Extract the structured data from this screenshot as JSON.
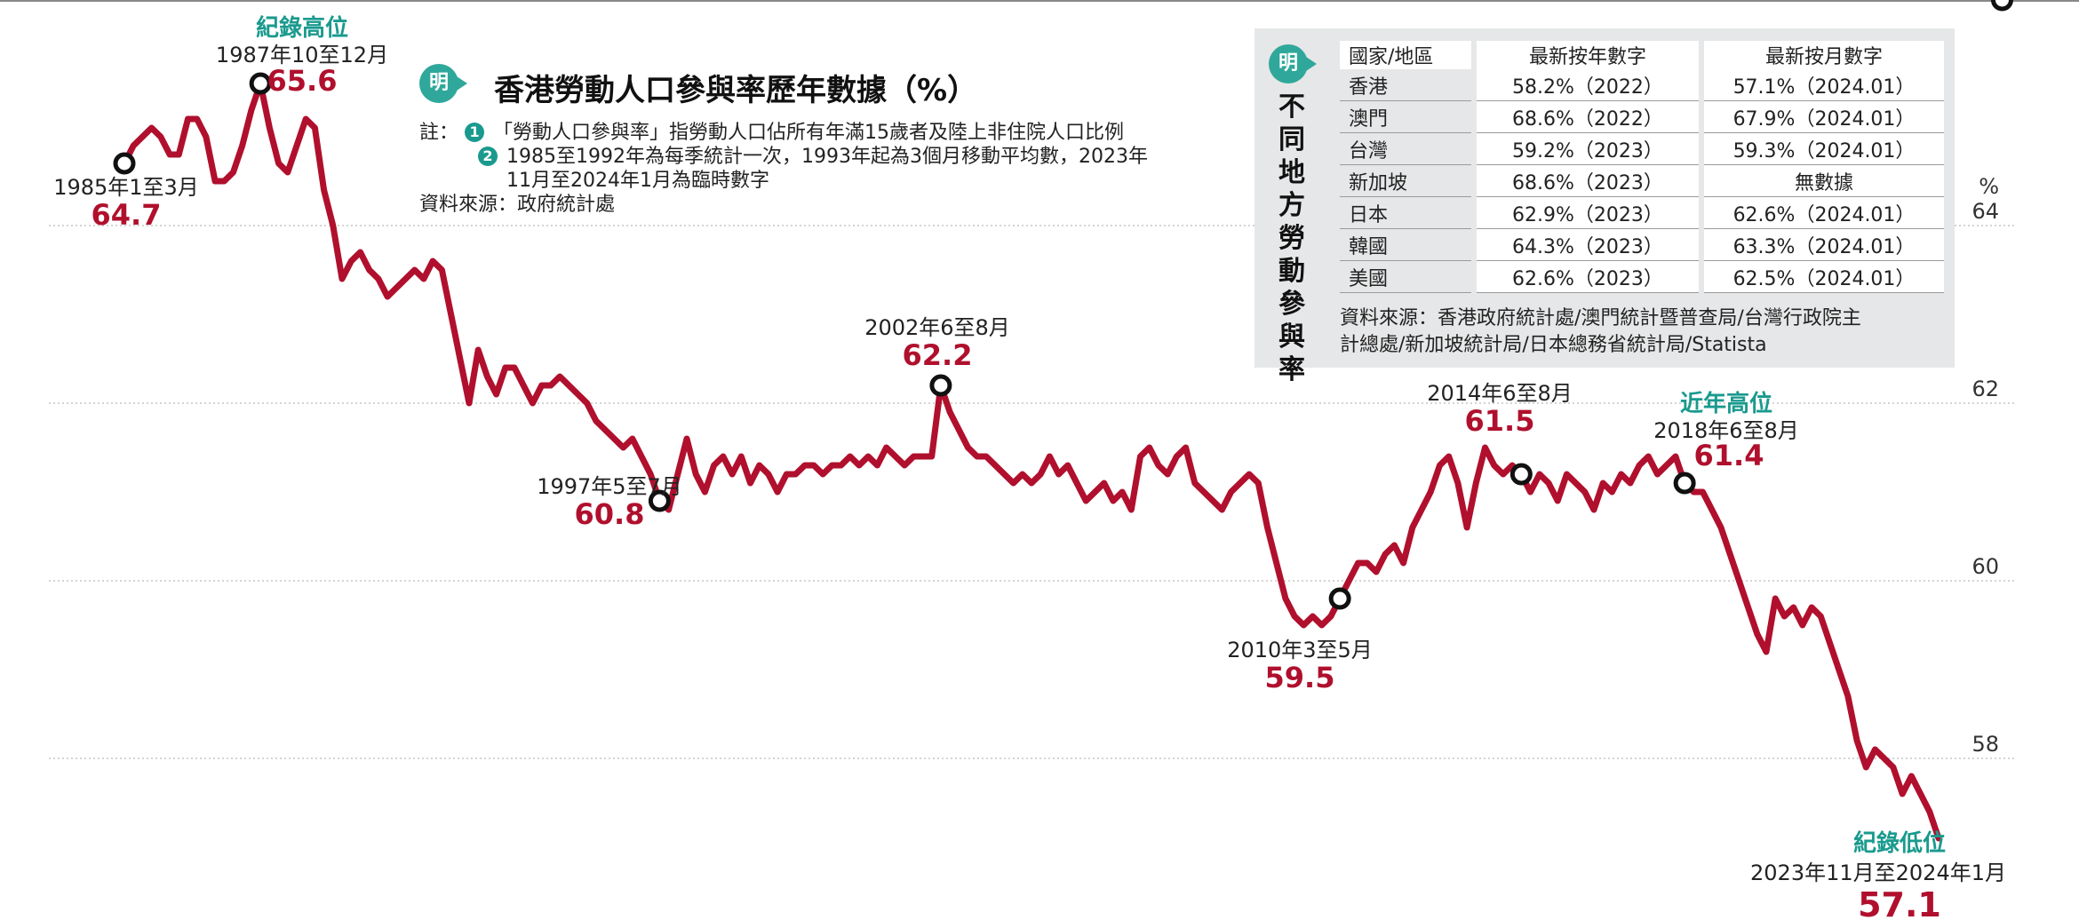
{
  "title": "香港勞動人口參與率歷年數據（%）",
  "notes": {
    "prefix": "註：",
    "n1": "1",
    "line1": "「勞動人口參與率」指勞動人口佔所有年滿15歲者及陸上非住院人口比例",
    "n2": "2",
    "line2a": "1985至1992年為每季統計一次，1993年起為3個月移動平均數，2023年",
    "line2b": "11月至2024年1月為臨時數字",
    "source": "資料來源：政府統計處"
  },
  "logo_text": "明",
  "panel": {
    "title_chars": [
      "不",
      "同",
      "地",
      "方",
      "勞",
      "動",
      "參",
      "與",
      "率"
    ],
    "headers": [
      "國家/地區",
      "最新按年數字",
      "最新按月數字"
    ],
    "rows": [
      [
        "香港",
        "58.2%（2022）",
        "57.1%（2024.01）"
      ],
      [
        "澳門",
        "68.6%（2022）",
        "67.9%（2024.01）"
      ],
      [
        "台灣",
        "59.2%（2023）",
        "59.3%（2024.01）"
      ],
      [
        "新加坡",
        "68.6%（2023）",
        "無數據"
      ],
      [
        "日本",
        "62.9%（2023）",
        "62.6%（2024.01）"
      ],
      [
        "韓國",
        "64.3%（2023）",
        "63.3%（2024.01）"
      ],
      [
        "美國",
        "62.6%（2023）",
        "62.5%（2024.01）"
      ]
    ],
    "source_line1": "資料來源：香港政府統計處/澳門統計暨普查局/台灣行政院主",
    "source_line2": "計總處/新加坡統計局/日本總務省統計局/Statista"
  },
  "chart_data": {
    "type": "line",
    "title": "香港勞動人口參與率歷年數據（%）",
    "unit": "%",
    "ylim": [
      56.6,
      66.0
    ],
    "yticks": [
      58,
      60,
      62,
      64
    ],
    "grid": true,
    "color": "#b0102d",
    "x_start": "1985 Q1",
    "x_end": "2023-11 to 2024-01",
    "series": [
      {
        "values": [
          64.7,
          64.9,
          65.0,
          65.1,
          65.0,
          64.8,
          64.8,
          65.2,
          65.2,
          65.0,
          64.5,
          64.5,
          64.6,
          64.9,
          65.3,
          65.6,
          65.1,
          64.7,
          64.6,
          64.9,
          65.2,
          65.1,
          64.4,
          64.0,
          63.4,
          63.6,
          63.7,
          63.5,
          63.4,
          63.2,
          63.3,
          63.4,
          63.5,
          63.4,
          63.6,
          63.5,
          63.0,
          62.5,
          62.0,
          62.6,
          62.3,
          62.1,
          62.4,
          62.4,
          62.2,
          62.0,
          62.2,
          62.2,
          62.3,
          62.2,
          62.1,
          62.0,
          61.8,
          61.7,
          61.6,
          61.5,
          61.6,
          61.4,
          61.2,
          60.9,
          60.8,
          61.2,
          61.6,
          61.2,
          61.0,
          61.3,
          61.4,
          61.2,
          61.4,
          61.1,
          61.3,
          61.2,
          61.0,
          61.2,
          61.2,
          61.3,
          61.3,
          61.2,
          61.3,
          61.3,
          61.4,
          61.3,
          61.4,
          61.3,
          61.5,
          61.4,
          61.3,
          61.4,
          61.4,
          61.4,
          62.2,
          61.9,
          61.7,
          61.5,
          61.4,
          61.4,
          61.3,
          61.2,
          61.1,
          61.2,
          61.1,
          61.2,
          61.4,
          61.2,
          61.3,
          61.1,
          60.9,
          61.0,
          61.1,
          60.9,
          61.0,
          60.8,
          61.4,
          61.5,
          61.3,
          61.2,
          61.4,
          61.5,
          61.1,
          61.0,
          60.9,
          60.8,
          61.0,
          61.1,
          61.2,
          61.1,
          60.6,
          60.2,
          59.8,
          59.6,
          59.5,
          59.6,
          59.5,
          59.6,
          59.8,
          60.0,
          60.2,
          60.2,
          60.1,
          60.3,
          60.4,
          60.2,
          60.6,
          60.8,
          61.0,
          61.3,
          61.4,
          61.1,
          60.6,
          61.1,
          61.5,
          61.3,
          61.2,
          61.3,
          61.2,
          61.0,
          61.2,
          61.1,
          60.9,
          61.2,
          61.1,
          61.0,
          60.8,
          61.1,
          61.0,
          61.2,
          61.1,
          61.3,
          61.4,
          61.2,
          61.3,
          61.4,
          61.1,
          61.0,
          61.0,
          60.8,
          60.6,
          60.3,
          60.0,
          59.7,
          59.4,
          59.2,
          59.8,
          59.6,
          59.7,
          59.5,
          59.7,
          59.6,
          59.3,
          59.0,
          58.7,
          58.2,
          57.9,
          58.1,
          58.0,
          57.9,
          57.6,
          57.8,
          57.6,
          57.4,
          57.1
        ]
      }
    ],
    "annotations": [
      {
        "tag": "",
        "date": "1985年1至3月",
        "value": "64.7"
      },
      {
        "tag": "紀錄高位",
        "date": "1987年10至12月",
        "value": "65.6"
      },
      {
        "tag": "",
        "date": "1997年5至7月",
        "value": "60.8"
      },
      {
        "tag": "",
        "date": "2002年6至8月",
        "value": "62.2"
      },
      {
        "tag": "",
        "date": "2010年3至5月",
        "value": "59.5"
      },
      {
        "tag": "",
        "date": "2014年6至8月",
        "value": "61.5"
      },
      {
        "tag": "近年高位",
        "date": "2018年6至8月",
        "value": "61.4"
      },
      {
        "tag": "紀錄低位",
        "date": "2023年11月至2024年1月",
        "value": "57.1"
      }
    ]
  }
}
